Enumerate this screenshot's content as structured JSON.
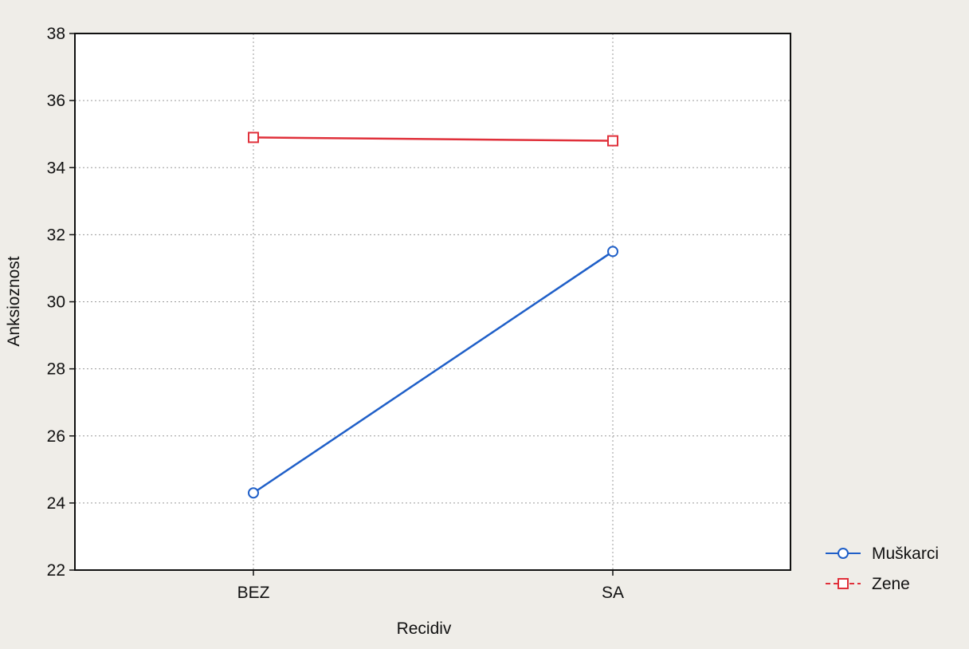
{
  "chart_data": {
    "type": "line",
    "xlabel": "Recidiv",
    "ylabel": "Anksioznost",
    "categories": [
      "BEZ",
      "SA"
    ],
    "ylim": [
      22,
      38
    ],
    "yticks": [
      22,
      24,
      26,
      28,
      30,
      32,
      34,
      36,
      38
    ],
    "grid": true,
    "legend_position": "bottom-right",
    "series": [
      {
        "name": "Muškarci",
        "values": [
          24.3,
          31.5
        ],
        "color": "#1f5fc8",
        "marker": "circle"
      },
      {
        "name": "Zene",
        "values": [
          34.9,
          34.8
        ],
        "color": "#e0303a",
        "marker": "square"
      }
    ]
  }
}
